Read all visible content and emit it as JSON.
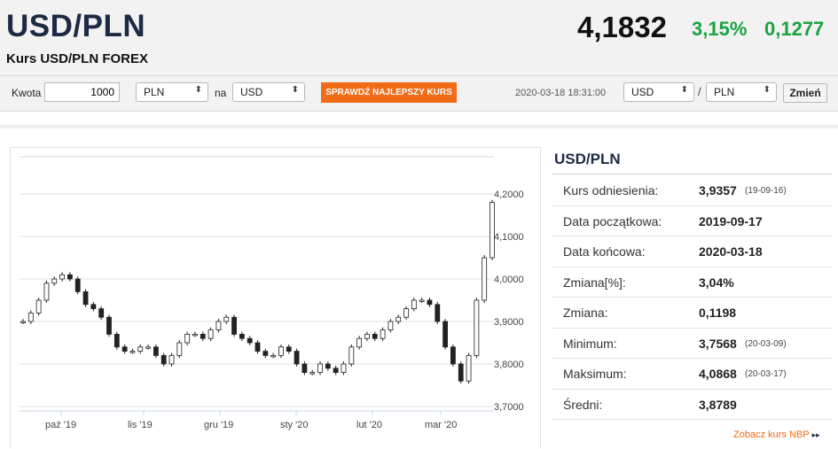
{
  "header": {
    "pair": "USD/PLN",
    "subtitle": "Kurs USD/PLN FOREX",
    "rate": "4,1832",
    "change_pct": "3,15%",
    "change_abs": "0,1277",
    "positive_color": "#1aa243"
  },
  "converter": {
    "amount_label": "Kwota",
    "amount_value": "1000",
    "from_currency": "PLN",
    "to_label": "na",
    "to_currency": "USD",
    "check_button": "SPRAWDŹ NAJLEPSZY KURS",
    "timestamp": "2020-03-18 18:31:00",
    "pair_base": "USD",
    "pair_slash": "/",
    "pair_quote": "PLN",
    "change_button": "Zmień",
    "accent_color": "#f26b16"
  },
  "stats": {
    "title": "USD/PLN",
    "rows": [
      {
        "label": "Kurs odniesienia:",
        "value": "3,9357",
        "date": "(19-09-16)"
      },
      {
        "label": "Data początkowa:",
        "value": "2019-09-17",
        "date": ""
      },
      {
        "label": "Data końcowa:",
        "value": "2020-03-18",
        "date": ""
      },
      {
        "label": "Zmiana[%]:",
        "value": "3,04%",
        "date": ""
      },
      {
        "label": "Zmiana:",
        "value": "0,1198",
        "date": ""
      },
      {
        "label": "Minimum:",
        "value": "3,7568",
        "date": "(20-03-09)"
      },
      {
        "label": "Maksimum:",
        "value": "4,0868",
        "date": "(20-03-17)"
      },
      {
        "label": "Średni:",
        "value": "3,8789",
        "date": ""
      }
    ],
    "nbp_link": "Zobacz kurs NBP",
    "nbp_icon": "double-chevron-right-icon"
  },
  "chart_data": {
    "type": "line",
    "x_ticks": [
      "paź '19",
      "lis '19",
      "gru '19",
      "sty '20",
      "lut '20",
      "mar '20"
    ],
    "y_ticks": [
      "4,2000",
      "4,1000",
      "4,0000",
      "3,9000",
      "3,8000",
      "3,7000"
    ],
    "ylim": [
      3.7,
      4.2
    ],
    "grid": true,
    "series": [
      {
        "values": [
          3.9,
          3.92,
          3.95,
          3.99,
          4.0,
          4.01,
          4.0,
          3.97,
          3.94,
          3.93,
          3.91,
          3.87,
          3.84,
          3.83,
          3.83,
          3.84,
          3.84,
          3.82,
          3.8,
          3.82,
          3.85,
          3.87,
          3.87,
          3.86,
          3.88,
          3.9,
          3.91,
          3.87,
          3.86,
          3.85,
          3.83,
          3.82,
          3.82,
          3.84,
          3.83,
          3.8,
          3.78,
          3.78,
          3.8,
          3.79,
          3.78,
          3.8,
          3.84,
          3.86,
          3.87,
          3.86,
          3.88,
          3.9,
          3.91,
          3.93,
          3.95,
          3.95,
          3.94,
          3.9,
          3.84,
          3.8,
          3.76,
          3.82,
          3.95,
          4.05,
          4.18
        ]
      }
    ]
  }
}
